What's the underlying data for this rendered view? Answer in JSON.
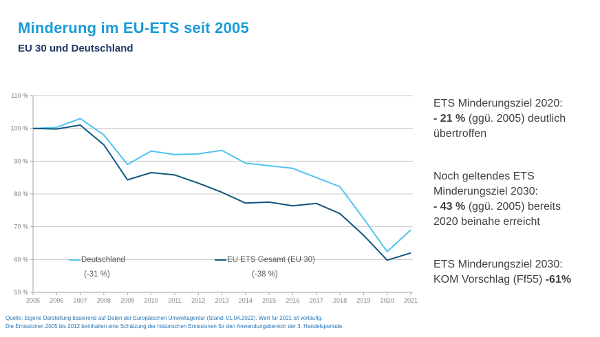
{
  "header": {
    "title": "Minderung im EU-ETS seit 2005",
    "subtitle": "EU 30 und Deutschland"
  },
  "chart_data": {
    "type": "line",
    "title": "",
    "x": [
      2005,
      2006,
      2007,
      2008,
      2009,
      2010,
      2011,
      2012,
      2013,
      2014,
      2015,
      2016,
      2017,
      2018,
      2019,
      2020,
      2021
    ],
    "series": [
      {
        "name": "Deutschland",
        "change_label": "(-31 %)",
        "color": "#4FC3F0",
        "values": [
          100,
          100.3,
          103,
          98,
          89,
          93.1,
          92,
          92.2,
          93.3,
          89.4,
          88.6,
          87.8,
          85,
          82.2,
          72.5,
          62.4,
          69
        ]
      },
      {
        "name": "EU ETS Gesamt (EU 30)",
        "change_label": "(-38 %)",
        "color": "#11567E",
        "values": [
          100,
          99.8,
          101,
          95,
          84.3,
          86.5,
          85.8,
          83.3,
          80.5,
          77.2,
          77.5,
          76.4,
          77.1,
          74,
          67.4,
          59.8,
          62
        ]
      }
    ],
    "ylim": [
      50,
      110
    ],
    "ytick_step": 10,
    "ytick_suffix": " %",
    "ytick_labels": [
      "50 %",
      "60 %",
      "70 %",
      "80 %",
      "90 %",
      "100 %",
      "110 %"
    ],
    "grid": true,
    "legend_position": "bottom-inside"
  },
  "annotations": [
    {
      "lines": [
        [
          {
            "t": "ETS Minderungsziel 2020:"
          }
        ],
        [
          {
            "t": "- 21 %",
            "b": true
          },
          {
            "t": " (ggü. 2005) deutlich"
          }
        ],
        [
          {
            "t": "übertroffen"
          }
        ]
      ]
    },
    {
      "lines": [
        [
          {
            "t": "Noch geltendes ETS"
          }
        ],
        [
          {
            "t": "Minderungsziel 2030:"
          }
        ],
        [
          {
            "t": "- 43 %",
            "b": true
          },
          {
            "t": " (ggü. 2005) bereits"
          }
        ],
        [
          {
            "t": "2020 beinahe erreicht"
          }
        ]
      ]
    },
    {
      "lines": [
        [
          {
            "t": "ETS Minderungsziel 2030:"
          }
        ],
        [
          {
            "t": "KOM Vorschlag (Ff55) "
          },
          {
            "t": "-61%",
            "b": true
          }
        ]
      ]
    }
  ],
  "footer": {
    "line1": "Quelle: Eigene Darstellung basierend auf Daten der Europäischen Umweltagentur (Stand: 01.04.2022). Wert für 2021 ist vorläufig.",
    "line2": "Die Emissionen 2005 bis 2012 beinhalten eine Schätzung der historischen Emissionen für den Anwendungsbereich der 3. Handelsperiode."
  },
  "colors": {
    "title": "#189CD9",
    "subtitle": "#1F3864",
    "annotation_text": "#404040",
    "footer_text": "#2674B5",
    "gridline": "#C9C9C9",
    "axis": "#A6A6A6",
    "axis_label": "#7F7F7F",
    "legend_text": "#595959"
  }
}
